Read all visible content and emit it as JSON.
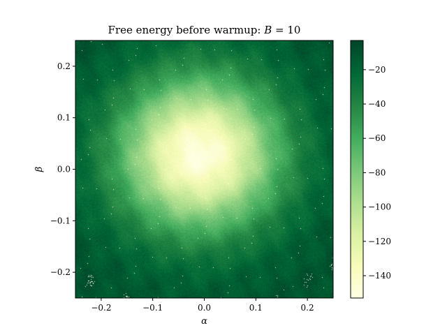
{
  "chart_data": {
    "type": "heatmap",
    "title": "Free energy before warmup: B = 10",
    "title_parts": {
      "prefix": "Free energy before warmup: ",
      "variable": "B",
      "suffix": " = 10"
    },
    "xlabel": "α",
    "ylabel": "β",
    "xlim": [
      -0.25,
      0.25
    ],
    "ylim": [
      -0.25,
      0.25
    ],
    "x_ticks": [
      -0.2,
      -0.1,
      0.0,
      0.1,
      0.2
    ],
    "x_tick_labels": [
      "−0.2",
      "−0.1",
      "0.0",
      "0.1",
      "0.2"
    ],
    "y_ticks": [
      -0.2,
      -0.1,
      0.0,
      0.1,
      0.2
    ],
    "y_tick_labels": [
      "−0.2",
      "−0.1",
      "0.0",
      "0.1",
      "0.2"
    ],
    "colorbar": {
      "range": [
        -153,
        -3
      ],
      "ticks": [
        -20,
        -40,
        -60,
        -80,
        -100,
        -120,
        -140
      ],
      "tick_labels": [
        "−20",
        "−40",
        "−60",
        "−80",
        "−100",
        "−120",
        "−140"
      ],
      "colormap": "YlGn",
      "colors": [
        "#ffffe5",
        "#f7fcb9",
        "#d9f0a3",
        "#addd8e",
        "#78c679",
        "#41ab5d",
        "#238443",
        "#006837",
        "#004529"
      ]
    },
    "field": {
      "description_values": "free energy over (alpha, beta); minimum near center",
      "min_value": -150,
      "min_location": [
        -0.01,
        0.03
      ],
      "edge_value": -10,
      "grid_on": false
    }
  }
}
